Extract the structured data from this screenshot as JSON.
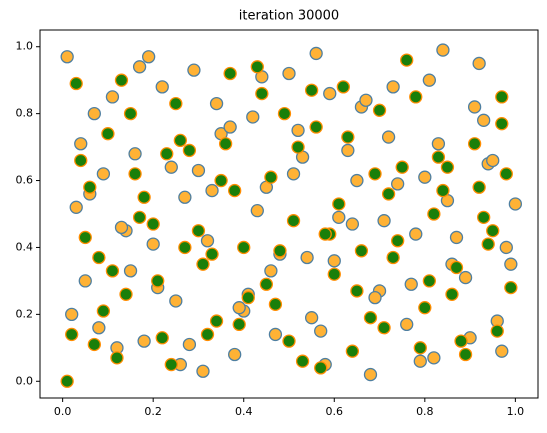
{
  "chart_data": {
    "type": "scatter",
    "title": "iteration 30000",
    "xlim": [
      -0.05,
      1.05
    ],
    "ylim": [
      -0.05,
      1.05
    ],
    "xticks": [
      {
        "value": 0,
        "label": "0.0"
      },
      {
        "value": 0.2,
        "label": "0.2"
      },
      {
        "value": 0.4,
        "label": "0.4"
      },
      {
        "value": 0.6,
        "label": "0.6"
      },
      {
        "value": 0.8,
        "label": "0.8"
      },
      {
        "value": 1,
        "label": "1.0"
      }
    ],
    "yticks": [
      {
        "value": 0,
        "label": "0.0"
      },
      {
        "value": 0.2,
        "label": "0.2"
      },
      {
        "value": 0.4,
        "label": "0.4"
      },
      {
        "value": 0.6,
        "label": "0.6"
      },
      {
        "value": 0.8,
        "label": "0.8"
      },
      {
        "value": 1,
        "label": "1.0"
      }
    ],
    "series": [
      {
        "color": "#ffb235",
        "edgecolor": "#4f7fa0",
        "x": [
          0.01,
          0.05,
          0.09,
          0.14,
          0.18,
          0.22,
          0.27,
          0.31,
          0.35,
          0.4,
          0.44,
          0.48,
          0.53,
          0.57,
          0.61,
          0.66,
          0.7,
          0.74,
          0.79,
          0.83,
          0.87,
          0.92,
          0.96,
          0.99,
          0.03,
          0.07,
          0.12,
          0.16,
          0.2,
          0.25,
          0.29,
          0.33,
          0.38,
          0.42,
          0.46,
          0.51,
          0.55,
          0.59,
          0.64,
          0.68,
          0.72,
          0.77,
          0.81,
          0.85,
          0.9,
          0.94,
          0.98,
          0.02,
          0.06,
          0.11,
          0.15,
          0.19,
          0.24,
          0.28,
          0.32,
          0.37,
          0.41,
          0.45,
          0.5,
          0.54,
          0.58,
          0.63,
          0.67,
          0.71,
          0.76,
          0.8,
          0.84,
          0.89,
          0.93,
          0.97,
          0.04,
          0.08,
          0.13,
          0.17,
          0.21,
          0.26,
          0.3,
          0.34,
          0.39,
          0.43,
          0.47,
          0.52,
          0.56,
          0.6,
          0.65,
          0.69,
          0.73,
          0.78,
          0.82,
          0.86,
          0.91,
          0.95,
          1.0
        ],
        "values": [
          0.97,
          0.3,
          0.62,
          0.45,
          0.12,
          0.88,
          0.55,
          0.03,
          0.74,
          0.21,
          0.91,
          0.38,
          0.67,
          0.15,
          0.49,
          0.82,
          0.27,
          0.59,
          0.06,
          0.71,
          0.43,
          0.95,
          0.18,
          0.35,
          0.52,
          0.8,
          0.1,
          0.68,
          0.41,
          0.24,
          0.93,
          0.57,
          0.08,
          0.79,
          0.33,
          0.62,
          0.19,
          0.86,
          0.47,
          0.02,
          0.73,
          0.29,
          0.9,
          0.54,
          0.13,
          0.65,
          0.4,
          0.2,
          0.56,
          0.85,
          0.33,
          0.97,
          0.64,
          0.11,
          0.42,
          0.76,
          0.26,
          0.58,
          0.92,
          0.37,
          0.05,
          0.69,
          0.84,
          0.48,
          0.17,
          0.61,
          0.99,
          0.31,
          0.78,
          0.09,
          0.71,
          0.16,
          0.46,
          0.94,
          0.28,
          0.05,
          0.63,
          0.83,
          0.22,
          0.51,
          0.14,
          0.75,
          0.98,
          0.36,
          0.6,
          0.25,
          0.88,
          0.44,
          0.07,
          0.35,
          0.82,
          0.66,
          0.53
        ]
      },
      {
        "color": "#1a7f0a",
        "edgecolor": "#ff8c00",
        "x": [
          0.02,
          0.06,
          0.11,
          0.15,
          0.2,
          0.24,
          0.28,
          0.33,
          0.37,
          0.41,
          0.46,
          0.5,
          0.55,
          0.59,
          0.63,
          0.68,
          0.72,
          0.76,
          0.81,
          0.85,
          0.89,
          0.94,
          0.97,
          0.99,
          0.04,
          0.09,
          0.13,
          0.17,
          0.22,
          0.26,
          0.31,
          0.35,
          0.39,
          0.44,
          0.48,
          0.52,
          0.57,
          0.61,
          0.65,
          0.7,
          0.74,
          0.79,
          0.83,
          0.87,
          0.92,
          0.96,
          0.01,
          0.03,
          0.08,
          0.12,
          0.16,
          0.21,
          0.25,
          0.3,
          0.34,
          0.38,
          0.43,
          0.47,
          0.51,
          0.56,
          0.6,
          0.64,
          0.69,
          0.73,
          0.78,
          0.82,
          0.86,
          0.91,
          0.95,
          0.98,
          0.05,
          0.1,
          0.14,
          0.18,
          0.23,
          0.27,
          0.32,
          0.36,
          0.4,
          0.45,
          0.49,
          0.53,
          0.58,
          0.62,
          0.66,
          0.71,
          0.75,
          0.8,
          0.84,
          0.88,
          0.93,
          0.97,
          0.07
        ],
        "values": [
          0.14,
          0.58,
          0.33,
          0.8,
          0.47,
          0.05,
          0.69,
          0.38,
          0.92,
          0.25,
          0.61,
          0.12,
          0.87,
          0.44,
          0.73,
          0.19,
          0.56,
          0.96,
          0.3,
          0.64,
          0.08,
          0.41,
          0.77,
          0.28,
          0.66,
          0.21,
          0.9,
          0.49,
          0.13,
          0.72,
          0.35,
          0.6,
          0.17,
          0.86,
          0.39,
          0.7,
          0.04,
          0.53,
          0.27,
          0.81,
          0.42,
          0.1,
          0.67,
          0.34,
          0.58,
          0.15,
          0.0,
          0.89,
          0.37,
          0.07,
          0.62,
          0.3,
          0.83,
          0.45,
          0.18,
          0.57,
          0.94,
          0.23,
          0.48,
          0.76,
          0.32,
          0.09,
          0.62,
          0.37,
          0.85,
          0.5,
          0.26,
          0.71,
          0.45,
          0.62,
          0.43,
          0.74,
          0.26,
          0.55,
          0.68,
          0.4,
          0.14,
          0.71,
          0.4,
          0.29,
          0.8,
          0.06,
          0.44,
          0.88,
          0.39,
          0.16,
          0.64,
          0.22,
          0.57,
          0.12,
          0.49,
          0.85,
          0.11
        ]
      }
    ]
  }
}
